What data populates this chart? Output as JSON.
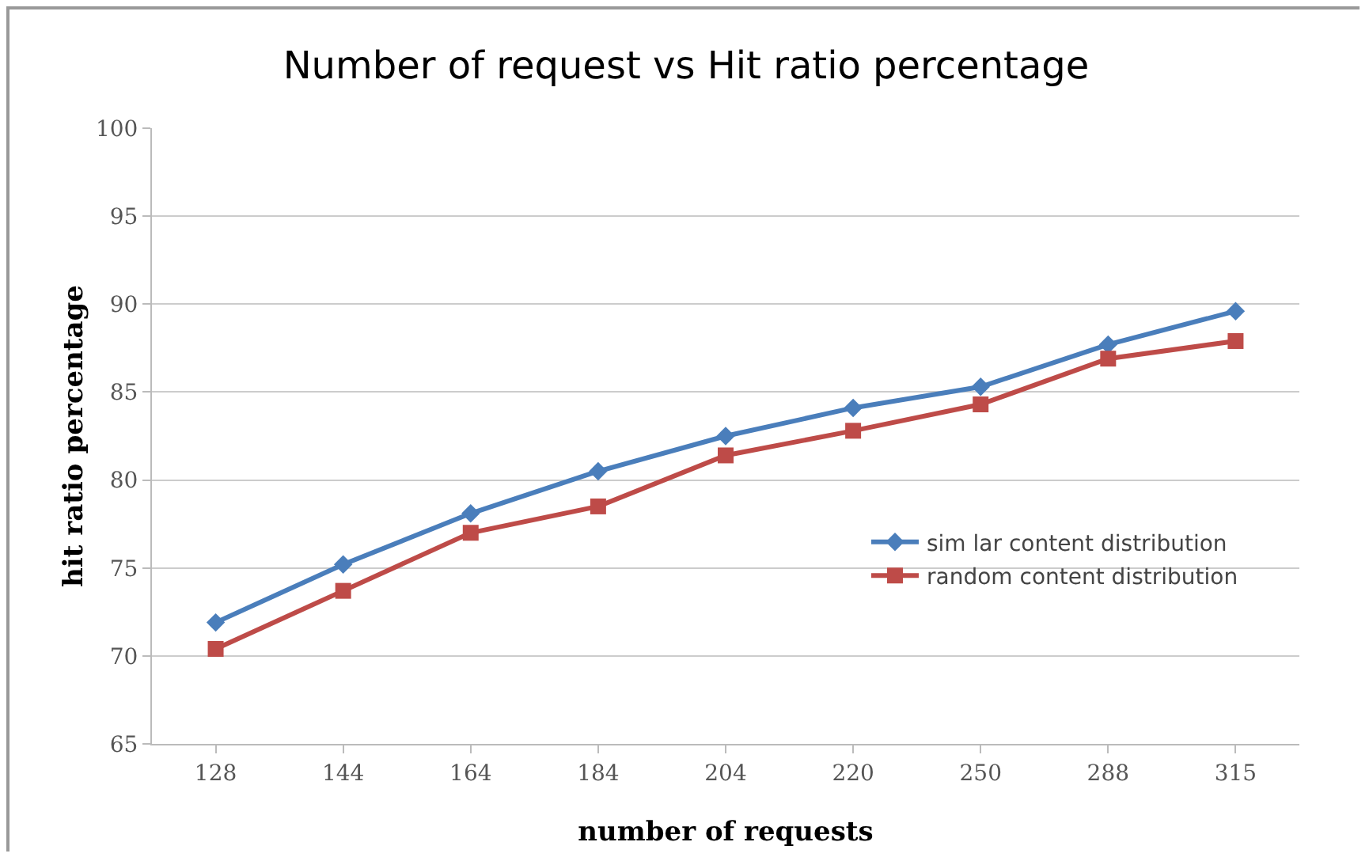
{
  "chart_data": {
    "type": "line",
    "title": "Number of request vs Hit ratio percentage",
    "xlabel": "number of requests",
    "ylabel": "hit ratio percentage",
    "categories": [
      "128",
      "144",
      "164",
      "184",
      "204",
      "220",
      "250",
      "288",
      "315"
    ],
    "series": [
      {
        "name": "sim lar content distribution",
        "color": "#4a7ebb",
        "marker": "diamond",
        "values": [
          71.9,
          75.2,
          78.1,
          80.5,
          82.5,
          84.1,
          85.3,
          87.7,
          89.6
        ]
      },
      {
        "name": "random content distribution",
        "color": "#be4b48",
        "marker": "square",
        "values": [
          70.4,
          73.7,
          77.0,
          78.5,
          81.4,
          82.8,
          84.3,
          86.9,
          87.9
        ]
      }
    ],
    "ylim": [
      65,
      100
    ],
    "yticks": [
      65,
      70,
      75,
      80,
      85,
      90,
      95,
      100
    ],
    "grid": "y",
    "legend": "right"
  }
}
